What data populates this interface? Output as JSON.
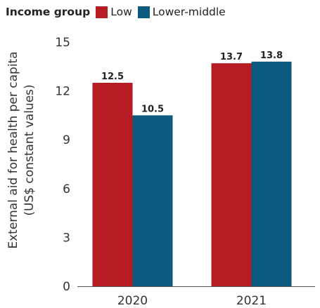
{
  "legend": {
    "title": "Income group",
    "items": [
      {
        "label": "Low",
        "color": "#b71c24"
      },
      {
        "label": "Lower-middle",
        "color": "#0d5a80"
      }
    ]
  },
  "chart_data": {
    "type": "bar",
    "categories": [
      "2020",
      "2021"
    ],
    "series": [
      {
        "name": "Low",
        "values": [
          12.5,
          13.7
        ],
        "color": "#b71c24"
      },
      {
        "name": "Lower-middle",
        "values": [
          10.5,
          13.8
        ],
        "color": "#0d5a80"
      }
    ],
    "ylabel_lines": [
      "External aid for health per capita",
      "(US$ constant values)"
    ],
    "ylim": [
      0,
      15
    ],
    "yticks": [
      0,
      3,
      6,
      9,
      12,
      15
    ],
    "data_labels": [
      [
        "12.5",
        "13.7"
      ],
      [
        "10.5",
        "13.8"
      ]
    ],
    "grid": false,
    "legend_position": "top-left"
  }
}
